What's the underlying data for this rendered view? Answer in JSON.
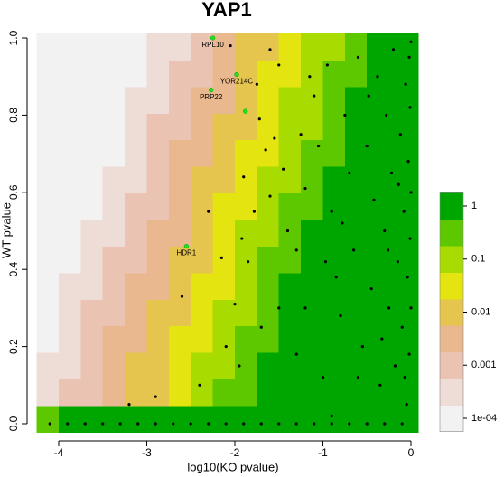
{
  "chart_data": {
    "type": "heatmap",
    "title": "YAP1",
    "x_label": "log10(KO pvalue)",
    "y_label": "WT pvalue",
    "xlim": [
      -4.25,
      0.08
    ],
    "ylim": [
      -0.022,
      1.012
    ],
    "xticks": [
      -4,
      -3,
      -2,
      -1,
      0
    ],
    "yticks": [
      {
        "value": 0,
        "label": "0.0"
      },
      0.2,
      0.4,
      0.6,
      0.8,
      {
        "value": 1,
        "label": "1.0"
      }
    ],
    "xbins": [
      -4.25,
      -4.0,
      -3.75,
      -3.5,
      -3.25,
      -3.0,
      -2.75,
      -2.5,
      -2.25,
      -2.0,
      -1.75,
      -1.5,
      -1.25,
      -1.0,
      -0.75,
      -0.5,
      -0.25,
      0.0,
      0.08
    ],
    "ybins": [
      -0.022,
      0.047,
      0.116,
      0.185,
      0.254,
      0.322,
      0.391,
      0.46,
      0.529,
      0.598,
      0.667,
      0.736,
      0.805,
      0.874,
      0.943,
      1.012
    ],
    "z": [
      [
        0.3,
        1,
        1,
        1,
        1,
        1,
        1,
        1,
        1,
        1,
        1,
        1,
        1,
        1,
        1,
        1,
        1,
        1
      ],
      [
        0.0003,
        0.001,
        0.001,
        0.003,
        0.01,
        0.01,
        0.03,
        0.1,
        0.3,
        0.3,
        1,
        1,
        1,
        1,
        1,
        1,
        1,
        1
      ],
      [
        0.0003,
        0.0003,
        0.001,
        0.003,
        0.01,
        0.01,
        0.03,
        0.1,
        0.1,
        0.3,
        1,
        1,
        1,
        1,
        1,
        1,
        1,
        1
      ],
      [
        0.0001,
        0.0003,
        0.001,
        0.003,
        0.003,
        0.01,
        0.03,
        0.03,
        0.1,
        0.3,
        0.3,
        1,
        1,
        1,
        1,
        1,
        1,
        1
      ],
      [
        0.0001,
        0.0003,
        0.001,
        0.001,
        0.003,
        0.01,
        0.01,
        0.03,
        0.1,
        0.1,
        0.3,
        1,
        1,
        1,
        1,
        1,
        1,
        1
      ],
      [
        0.0001,
        0.0003,
        0.0003,
        0.001,
        0.003,
        0.003,
        0.01,
        0.03,
        0.03,
        0.1,
        0.3,
        1,
        1,
        1,
        1,
        1,
        1,
        1
      ],
      [
        0.0001,
        0.0001,
        0.0003,
        0.001,
        0.001,
        0.003,
        0.01,
        0.01,
        0.03,
        0.1,
        0.3,
        0.3,
        1,
        1,
        1,
        1,
        1,
        1
      ],
      [
        0.0001,
        0.0001,
        0.0003,
        0.0003,
        0.001,
        0.003,
        0.003,
        0.01,
        0.03,
        0.1,
        0.1,
        0.3,
        1,
        1,
        1,
        1,
        1,
        1
      ],
      [
        0.0001,
        0.0001,
        0.0001,
        0.0003,
        0.001,
        0.001,
        0.003,
        0.01,
        0.03,
        0.03,
        0.1,
        0.3,
        0.3,
        1,
        1,
        1,
        1,
        1
      ],
      [
        0.0001,
        0.0001,
        0.0001,
        0.0003,
        0.0003,
        0.001,
        0.003,
        0.01,
        0.01,
        0.03,
        0.1,
        0.1,
        0.3,
        1,
        1,
        1,
        1,
        1
      ],
      [
        0.0001,
        0.0001,
        0.0001,
        0.0001,
        0.0003,
        0.001,
        0.003,
        0.003,
        0.01,
        0.03,
        0.03,
        0.1,
        0.3,
        0.3,
        1,
        1,
        1,
        1
      ],
      [
        0.0001,
        0.0001,
        0.0001,
        0.0001,
        0.0003,
        0.001,
        0.001,
        0.003,
        0.01,
        0.01,
        0.03,
        0.1,
        0.1,
        0.3,
        1,
        1,
        1,
        1
      ],
      [
        0.0001,
        0.0001,
        0.0001,
        0.0001,
        0.0003,
        0.0003,
        0.001,
        0.003,
        0.003,
        0.01,
        0.03,
        0.1,
        0.1,
        0.3,
        1,
        1,
        1,
        1
      ],
      [
        0.0001,
        0.0001,
        0.0001,
        0.0001,
        0.0001,
        0.0003,
        0.001,
        0.001,
        0.003,
        0.01,
        0.03,
        0.03,
        0.1,
        0.3,
        0.3,
        1,
        1,
        1
      ],
      [
        0.0001,
        0.0001,
        0.0001,
        0.0001,
        0.0001,
        0.0003,
        0.0003,
        0.001,
        0.003,
        0.01,
        0.01,
        0.03,
        0.1,
        0.1,
        0.3,
        1,
        1,
        1
      ]
    ],
    "zlim": [
      0.0001,
      1
    ],
    "zlog": true,
    "colorscale": [
      "#f2f2f2",
      "#eedcd6",
      "#ebc3b3",
      "#e9b88e",
      "#e6c54e",
      "#e3e410",
      "#a8dc00",
      "#5dc800",
      "#00a600"
    ],
    "zticks": [
      1,
      0.1,
      0.01,
      0.001,
      {
        "value": 0.0001,
        "label": "1e-04"
      }
    ],
    "points": {
      "color": "#000000",
      "x": [
        -4.1,
        -3.9,
        -3.7,
        -3.5,
        -3.3,
        -3.1,
        -2.9,
        -2.7,
        -2.5,
        -2.3,
        -2.1,
        -1.9,
        -1.7,
        -1.5,
        -1.3,
        -1.1,
        -0.9,
        -0.7,
        -0.5,
        -0.3,
        -0.1,
        -2.6,
        -2.05,
        -1.6,
        -1.5,
        -1.75,
        -1.72,
        -1.65,
        -1.55,
        -1.45,
        -1.9,
        -1.6,
        -1.78,
        -1.92,
        -2.15,
        -1.85,
        -1.4,
        -1.3,
        -1.2,
        -1.1,
        -1.05,
        -0.95,
        -0.9,
        -0.85,
        -1.5,
        -1.7,
        -2.1,
        -1.95,
        -2.4,
        -2.9,
        -3.2,
        -1.3,
        -1.0,
        -0.8,
        -0.75,
        -0.7,
        -0.65,
        -0.6,
        -0.55,
        -0.5,
        -0.45,
        -0.42,
        -0.38,
        -0.35,
        -0.3,
        -0.28,
        -0.25,
        -0.22,
        -0.2,
        -0.18,
        -0.15,
        -0.12,
        -0.1,
        -0.08,
        -0.06,
        -0.05,
        -0.04,
        -0.03,
        -0.02,
        -0.02,
        -0.01,
        -0.01,
        0,
        0,
        0,
        -0.9,
        -1.2,
        -1.15,
        -0.97,
        -2.3,
        -1.25,
        -2.0,
        -0.6,
        -0.33,
        -0.14,
        -0.07,
        -0.48,
        -0.78,
        -0.26
      ],
      "y": [
        0,
        0,
        0,
        0,
        0,
        0,
        0,
        0,
        0,
        0,
        0,
        0,
        0,
        0,
        0,
        0,
        0,
        0,
        0,
        0,
        0,
        0.33,
        0.98,
        0.97,
        0.93,
        0.88,
        0.79,
        0.71,
        0.74,
        0.66,
        0.64,
        0.59,
        0.55,
        0.48,
        0.43,
        0.42,
        0.5,
        0.45,
        0.61,
        0.85,
        0.72,
        0.93,
        0.55,
        0.38,
        0.3,
        0.25,
        0.2,
        0.15,
        0.1,
        0.07,
        0.05,
        0.18,
        0.12,
        0.28,
        0.8,
        0.65,
        0.45,
        0.95,
        0.2,
        0.72,
        0.35,
        0.58,
        0.9,
        0.1,
        0.5,
        0.8,
        0.3,
        0.65,
        0.97,
        0.15,
        0.42,
        0.75,
        0.25,
        0.55,
        0.88,
        0.05,
        0.38,
        0.68,
        0.95,
        0.18,
        0.48,
        0.82,
        0.3,
        0.6,
        0.99,
        0.02,
        0.3,
        0.9,
        0.42,
        0.55,
        0.75,
        0.31,
        0.12,
        0.22,
        0.62,
        0.12,
        0.85,
        0.52,
        0.45
      ]
    },
    "highlights": {
      "color": "#22dd22",
      "x": [
        -2.25,
        -1.98,
        -2.27,
        -1.88,
        -2.55
      ],
      "y": [
        1.0,
        0.905,
        0.865,
        0.81,
        0.46
      ],
      "labels": [
        "RPL10",
        "YOR214C",
        "PRP22",
        null,
        "HDR1"
      ]
    }
  }
}
